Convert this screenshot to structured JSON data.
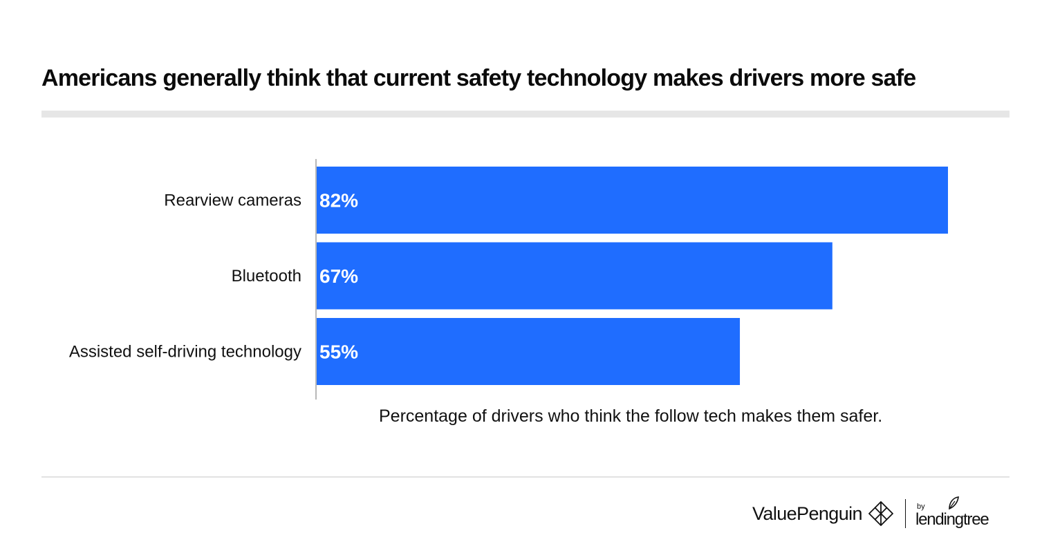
{
  "title": "Americans generally think that current safety technology makes drivers more safe",
  "caption": "Percentage of drivers who think the follow tech makes them safer.",
  "colors": {
    "bar": "#1f6dff",
    "axis": "#b8b8b8",
    "rule": "#e6e6e6"
  },
  "chart_data": {
    "type": "bar",
    "orientation": "horizontal",
    "categories": [
      "Rearview cameras",
      "Bluetooth",
      "Assisted self-driving technology"
    ],
    "values": [
      82,
      67,
      55
    ],
    "value_labels": [
      "82%",
      "67%",
      "55%"
    ],
    "xlim": [
      0,
      100
    ],
    "title": "Americans generally think that current safety technology makes drivers more safe",
    "xlabel": "Percentage of drivers who think the follow tech makes them safer.",
    "ylabel": "",
    "grid": false
  },
  "branding": {
    "valuepenguin": "ValuePenguin",
    "by": "by",
    "lendingtree": "lendingtree",
    "icons": [
      "valuepenguin-logo-icon",
      "lendingtree-leaf-icon"
    ]
  }
}
